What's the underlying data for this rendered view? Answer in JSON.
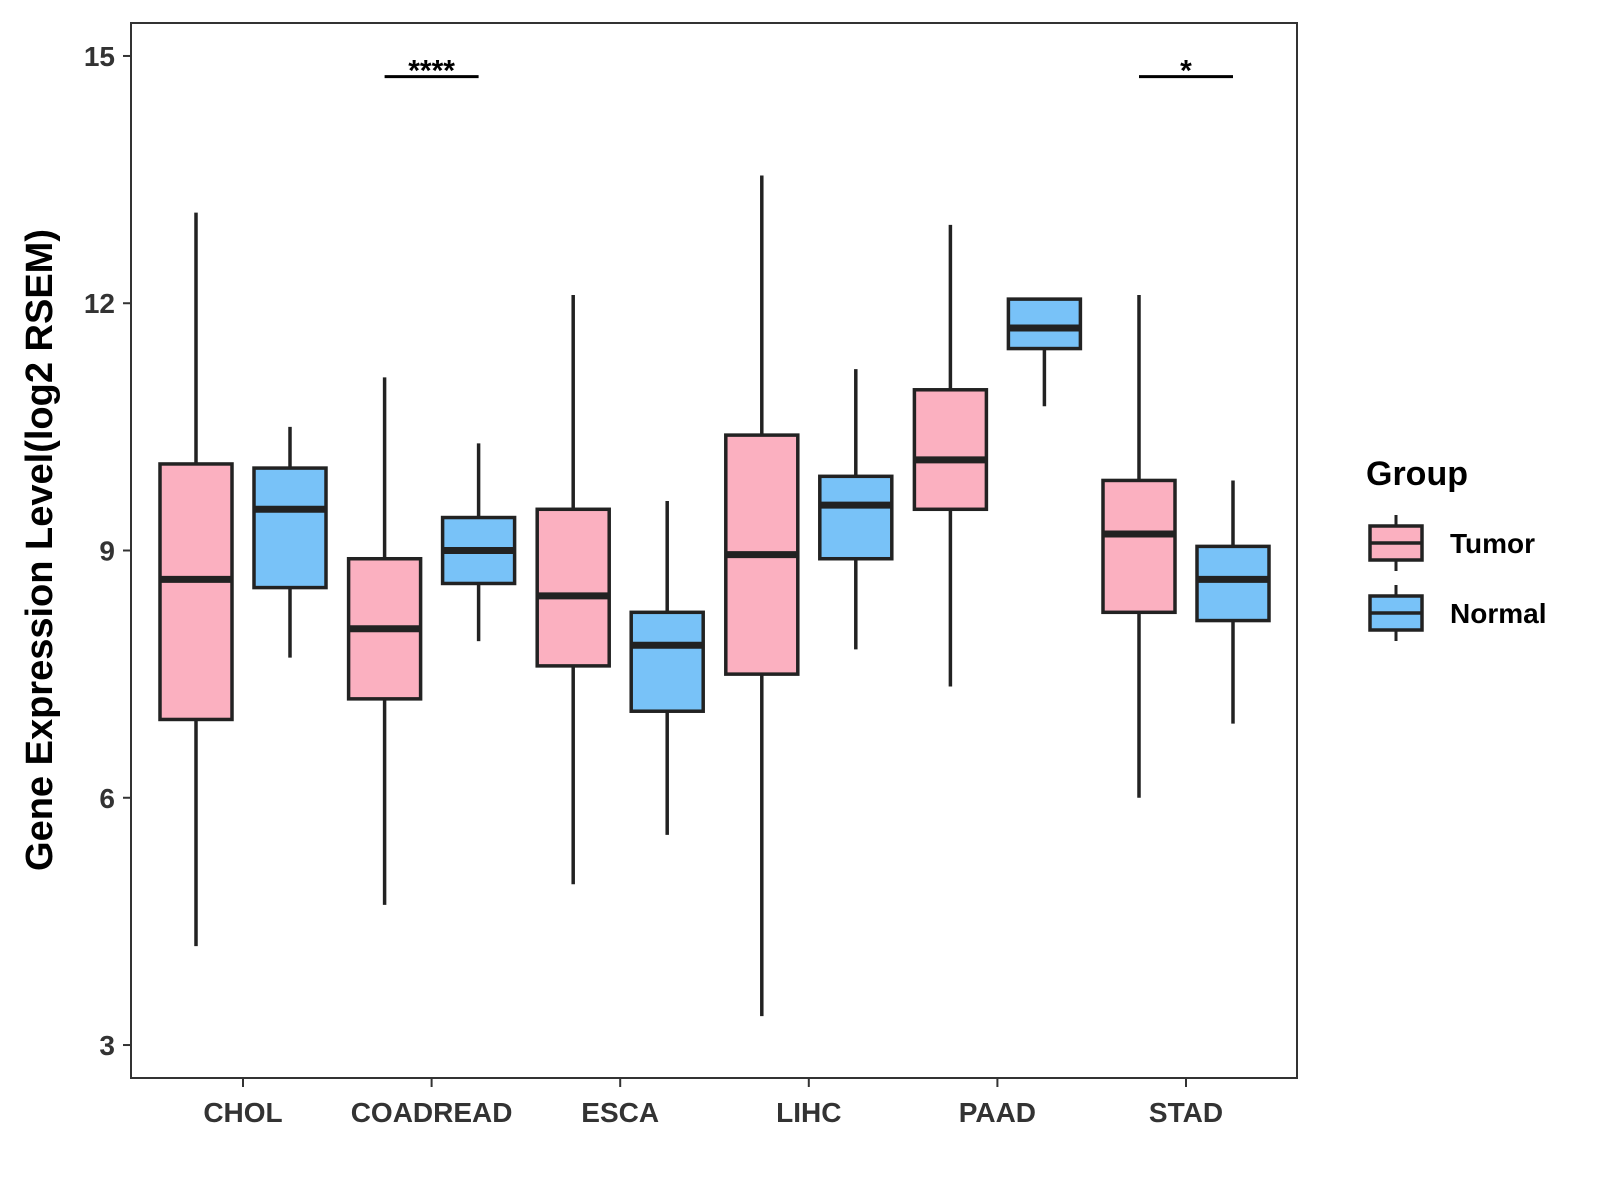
{
  "chart_data": {
    "type": "boxplot",
    "title": "",
    "xlabel": "",
    "ylabel": "Gene Expression Level(log2 RSEM)",
    "ylim": [
      2.6,
      15.4
    ],
    "yticks": [
      3,
      6,
      9,
      12,
      15
    ],
    "categories": [
      "CHOL",
      "COADREAD",
      "ESCA",
      "LIHC",
      "PAAD",
      "STAD"
    ],
    "legend": {
      "title": "Group",
      "position": "right",
      "entries": [
        {
          "name": "Tumor",
          "color": "#FBB0C0"
        },
        {
          "name": "Normal",
          "color": "#78C2F8"
        }
      ]
    },
    "series": [
      {
        "name": "Tumor",
        "color": "#FBB0C0",
        "boxes": [
          {
            "min": 4.2,
            "q1": 6.95,
            "median": 8.65,
            "q3": 10.05,
            "max": 13.1
          },
          {
            "min": 4.7,
            "q1": 7.2,
            "median": 8.05,
            "q3": 8.9,
            "max": 11.1
          },
          {
            "min": 4.95,
            "q1": 7.6,
            "median": 8.45,
            "q3": 9.5,
            "max": 12.1
          },
          {
            "min": 3.35,
            "q1": 7.5,
            "median": 8.95,
            "q3": 10.4,
            "max": 13.55
          },
          {
            "min": 7.35,
            "q1": 9.5,
            "median": 10.1,
            "q3": 10.95,
            "max": 12.95
          },
          {
            "min": 6.0,
            "q1": 8.25,
            "median": 9.2,
            "q3": 9.85,
            "max": 12.1
          }
        ]
      },
      {
        "name": "Normal",
        "color": "#78C2F8",
        "boxes": [
          {
            "min": 7.7,
            "q1": 8.55,
            "median": 9.5,
            "q3": 10.0,
            "max": 10.5
          },
          {
            "min": 7.9,
            "q1": 8.6,
            "median": 9.0,
            "q3": 9.4,
            "max": 10.3
          },
          {
            "min": 5.55,
            "q1": 7.05,
            "median": 7.85,
            "q3": 8.25,
            "max": 9.6
          },
          {
            "min": 7.8,
            "q1": 8.9,
            "median": 9.55,
            "q3": 9.9,
            "max": 11.2
          },
          {
            "min": 10.75,
            "q1": 11.45,
            "median": 11.7,
            "q3": 12.05,
            "max": 12.05
          },
          {
            "min": 6.9,
            "q1": 8.15,
            "median": 8.65,
            "q3": 9.05,
            "max": 9.85
          }
        ]
      }
    ],
    "significance": [
      {
        "category": "COADREAD",
        "label": "****",
        "y": 14.75
      },
      {
        "category": "STAD",
        "label": "*",
        "y": 14.75
      }
    ]
  }
}
